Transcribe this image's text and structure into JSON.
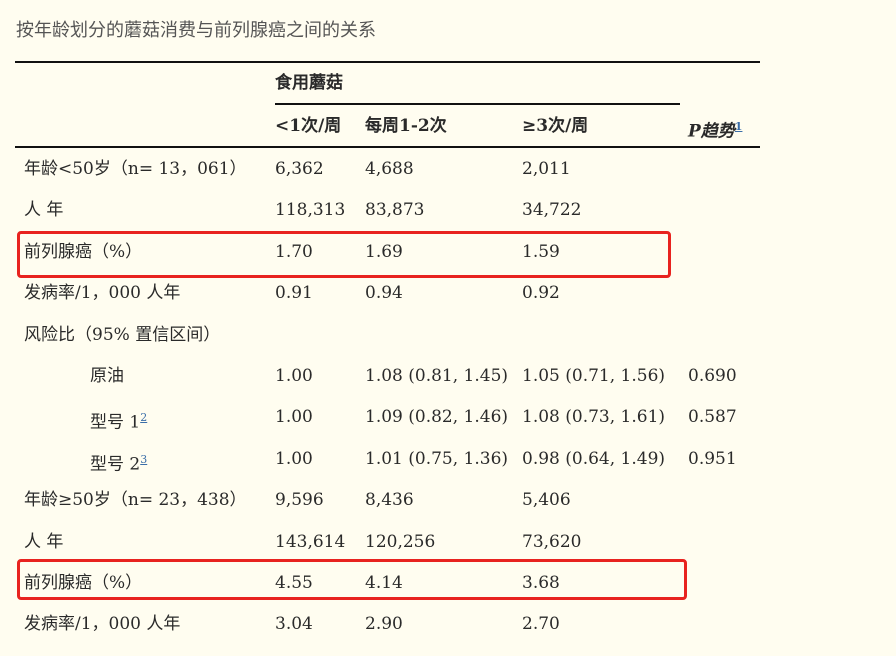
{
  "title": "按年龄划分的蘑菇消费与前列腺癌之间的关系",
  "header": {
    "group": "食用蘑菇",
    "columns": [
      "<1次/周",
      "每周1-2次",
      "≥3次/周"
    ],
    "p_trend": "P趋势",
    "p_trend_note": "1"
  },
  "rows": [
    {
      "label": "年龄<50岁（n= 13，061）",
      "c1": "6,362",
      "c2": "4,688",
      "c3": "2,011",
      "p": ""
    },
    {
      "label": "人 年",
      "c1": "118,313",
      "c2": "83,873",
      "c3": "34,722",
      "p": ""
    },
    {
      "label": "前列腺癌（%）",
      "c1": "1.70",
      "c2": "1.69",
      "c3": "1.59",
      "p": ""
    },
    {
      "label": "发病率/1，000 人年",
      "c1": "0.91",
      "c2": "0.94",
      "c3": "0.92",
      "p": ""
    },
    {
      "label": "风险比（95% 置信区间）",
      "c1": "",
      "c2": "",
      "c3": "",
      "p": ""
    },
    {
      "label": "原油",
      "note": "",
      "c1": "1.00",
      "c2": "1.08 (0.81, 1.45)",
      "c3": "1.05 (0.71, 1.56)",
      "p": "0.690"
    },
    {
      "label": "型号 1",
      "note": "2",
      "c1": "1.00",
      "c2": "1.09 (0.82, 1.46)",
      "c3": "1.08 (0.73, 1.61)",
      "p": "0.587"
    },
    {
      "label": "型号 2",
      "note": "3",
      "c1": "1.00",
      "c2": "1.01 (0.75, 1.36)",
      "c3": "0.98 (0.64, 1.49)",
      "p": "0.951"
    },
    {
      "label": "年龄≥50岁（n= 23，438）",
      "c1": "9,596",
      "c2": "8,436",
      "c3": "5,406",
      "p": ""
    },
    {
      "label": "人 年",
      "c1": "143,614",
      "c2": "120,256",
      "c3": "73,620",
      "p": ""
    },
    {
      "label": "前列腺癌（%）",
      "c1": "4.55",
      "c2": "4.14",
      "c3": "3.68",
      "p": ""
    },
    {
      "label": "发病率/1，000 人年",
      "c1": "3.04",
      "c2": "2.90",
      "c3": "2.70",
      "p": ""
    }
  ],
  "highlight_color": "#e8231f"
}
